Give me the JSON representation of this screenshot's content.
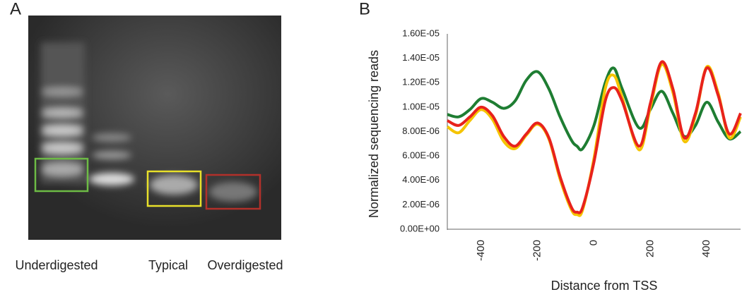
{
  "panel_labels": [
    "A",
    "B"
  ],
  "gel": {
    "lane_labels": [
      "Underdigested",
      "Typical",
      "Overdigested"
    ]
  },
  "chart_data": {
    "type": "line",
    "xlabel": "Distance from TSS",
    "ylabel": "Normalized sequencing reads",
    "x": [
      -520,
      -480,
      -440,
      -400,
      -360,
      -320,
      -280,
      -240,
      -200,
      -160,
      -120,
      -80,
      -60,
      -40,
      0,
      40,
      70,
      100,
      160,
      200,
      240,
      280,
      320,
      360,
      400,
      440,
      480,
      520
    ],
    "series": [
      {
        "color": "#1e7d32",
        "values": [
          9.4e-06,
          9.2e-06,
          9.8e-06,
          1.07e-05,
          1.04e-05,
          9.9e-06,
          1.05e-05,
          1.22e-05,
          1.29e-05,
          1.15e-05,
          9.2e-06,
          7.3e-06,
          6.8e-06,
          6.6e-06,
          8.5e-06,
          1.2e-05,
          1.32e-05,
          1.15e-05,
          8.3e-06,
          9.8e-06,
          1.13e-05,
          9.5e-06,
          7.6e-06,
          8.5e-06,
          1.04e-05,
          8.8e-06,
          7.4e-06,
          8e-06
        ]
      },
      {
        "color": "#f5c400",
        "values": [
          8.4e-06,
          7.9e-06,
          8.9e-06,
          9.8e-06,
          9e-06,
          7.2e-06,
          6.6e-06,
          7.7e-06,
          8.6e-06,
          7.4e-06,
          4.1e-06,
          1.6e-06,
          1.2e-06,
          1.6e-06,
          5.8e-06,
          1.15e-05,
          1.26e-05,
          1.08e-05,
          6.5e-06,
          1e-05,
          1.35e-05,
          1.12e-05,
          7.2e-06,
          9.3e-06,
          1.33e-05,
          1.12e-05,
          7.5e-06,
          9.2e-06
        ]
      },
      {
        "color": "#e8221c",
        "values": [
          8.9e-06,
          8.5e-06,
          9.2e-06,
          1e-05,
          9.3e-06,
          7.6e-06,
          6.8e-06,
          7.8e-06,
          8.7e-06,
          7.5e-06,
          4.3e-06,
          1.8e-06,
          1.4e-06,
          1.8e-06,
          5.5e-06,
          1.05e-05,
          1.16e-05,
          1.05e-05,
          6.8e-06,
          1.03e-05,
          1.37e-05,
          1.15e-05,
          7.5e-06,
          9.5e-06,
          1.32e-05,
          1.1e-05,
          7.8e-06,
          9.5e-06
        ]
      }
    ],
    "xlim": [
      -520,
      520
    ],
    "ylim": [
      0,
      1.6e-05
    ],
    "xticks": [
      -400,
      -200,
      0,
      200,
      400
    ],
    "yticks": [
      {
        "value": 0,
        "label": "0.00E+00"
      },
      {
        "value": 2e-06,
        "label": "2.00E-06"
      },
      {
        "value": 4e-06,
        "label": "4.00E-06"
      },
      {
        "value": 6e-06,
        "label": "6.00E-06"
      },
      {
        "value": 8e-06,
        "label": "8.00E-06"
      },
      {
        "value": 1e-05,
        "label": "1.00E-05"
      },
      {
        "value": 1.2e-05,
        "label": "1.20E-05"
      },
      {
        "value": 1.4e-05,
        "label": "1.40E-05"
      },
      {
        "value": 1.6e-05,
        "label": "1.60E-05"
      }
    ]
  }
}
